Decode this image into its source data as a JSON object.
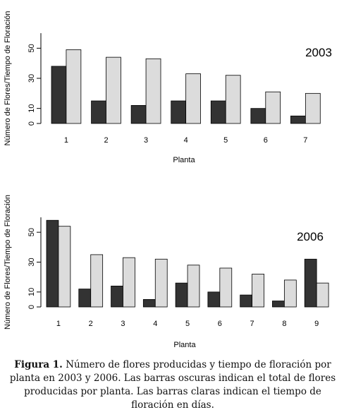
{
  "chart_data": [
    {
      "type": "bar",
      "label": "2003",
      "categories": [
        "1",
        "2",
        "3",
        "4",
        "5",
        "6",
        "7"
      ],
      "series": [
        {
          "values": [
            38,
            15,
            12,
            15,
            15,
            10,
            5
          ],
          "color": "#333333"
        },
        {
          "values": [
            49,
            44,
            43,
            33,
            32,
            21,
            20
          ],
          "color": "#dcdcdc"
        }
      ],
      "xlabel": "Planta",
      "ylabel": "Número de Flores/Tiempo de Floración",
      "yticks": [
        0,
        10,
        30,
        50
      ],
      "ylim": [
        0,
        60
      ],
      "grid": false
    },
    {
      "type": "bar",
      "label": "2006",
      "categories": [
        "1",
        "2",
        "3",
        "4",
        "5",
        "6",
        "7",
        "8",
        "9"
      ],
      "series": [
        {
          "values": [
            58,
            12,
            14,
            5,
            16,
            10,
            8,
            4,
            32
          ],
          "color": "#333333"
        },
        {
          "values": [
            54,
            35,
            33,
            32,
            28,
            26,
            22,
            18,
            16
          ],
          "color": "#dcdcdc"
        }
      ],
      "xlabel": "Planta",
      "ylabel": "Número de Flores/Tiempo de Floración",
      "yticks": [
        0,
        10,
        30,
        50
      ],
      "ylim": [
        0,
        60
      ],
      "grid": false
    }
  ],
  "caption": {
    "label": "Figura 1.",
    "text": "Número de flores producidas y tiempo de floración por planta en 2003 y 2006. Las barras oscuras indican el total de flores producidas por planta. Las barras claras indican el tiempo de floración en días."
  }
}
